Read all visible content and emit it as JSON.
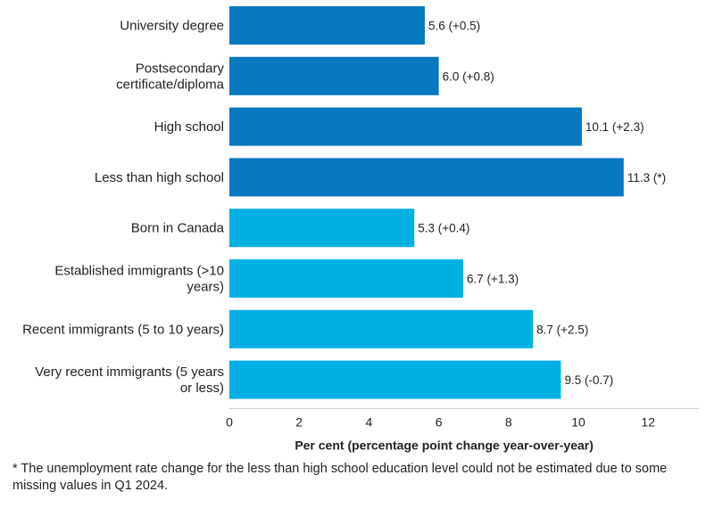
{
  "chart_data": {
    "type": "bar",
    "orientation": "horizontal",
    "categories": [
      [
        "University degree"
      ],
      [
        "Postsecondary",
        "certificate/diploma"
      ],
      [
        "High school"
      ],
      [
        "Less than high school"
      ],
      [
        "Born in Canada"
      ],
      [
        "Established immigrants (>10",
        "years)"
      ],
      [
        "Recent immigrants (5 to 10 years)"
      ],
      [
        "Very recent immigrants (5 years",
        "or less)"
      ]
    ],
    "values": [
      5.6,
      6.0,
      10.1,
      11.3,
      5.3,
      6.7,
      8.7,
      9.5
    ],
    "value_labels": [
      "5.6 (+0.5)",
      "6.0 (+0.8)",
      "10.1 (+2.3)",
      "11.3 (*)",
      "5.3 (+0.4)",
      "6.7 (+1.3)",
      "8.7 (+2.5)",
      "9.5 (-0.7)"
    ],
    "groups": [
      "education",
      "education",
      "education",
      "education",
      "immigration",
      "immigration",
      "immigration",
      "immigration"
    ],
    "group_colors": {
      "education": "#0878c0",
      "immigration": "#00b0e2"
    },
    "xlim": [
      0,
      13
    ],
    "xticks": [
      0,
      2,
      4,
      6,
      8,
      10,
      12
    ],
    "tick_labels": [
      "0",
      "2",
      "4",
      "6",
      "8",
      "10",
      "12"
    ],
    "xlabel": "Per cent (percentage point change year-over-year)",
    "grid": false
  },
  "footnote": "* The unemployment rate change for the less than high school education level could not be estimated due to some missing values in Q1 2024."
}
